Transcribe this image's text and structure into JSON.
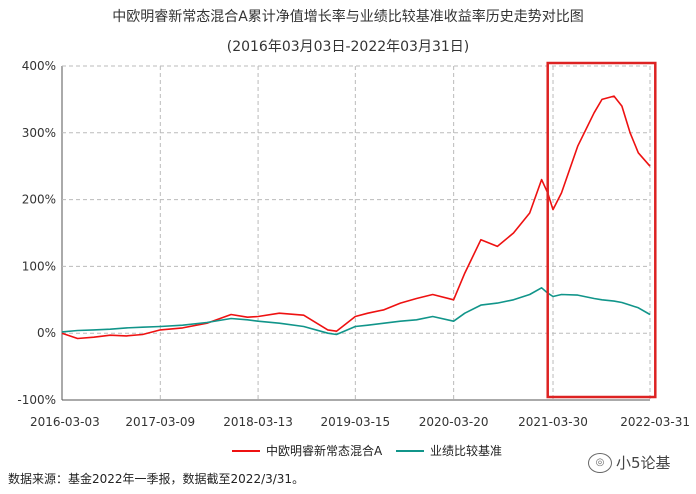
{
  "chart_data": {
    "type": "line",
    "title": "中欧明睿新常态混合A累计净值增长率与业绩比较基准收益率历史走势对比图",
    "subtitle": "(2016年03月03日-2022年03月31日)",
    "xlabel": "",
    "ylabel": "",
    "x_ticks": [
      "2016-03-03",
      "2017-03-09",
      "2018-03-13",
      "2019-03-15",
      "2020-03-20",
      "2021-03-30",
      "2022-03-31"
    ],
    "y_ticks": [
      "400%",
      "300%",
      "200%",
      "100%",
      "0%",
      "-100%"
    ],
    "y_tick_values": [
      400,
      300,
      200,
      100,
      0,
      -100
    ],
    "ylim": [
      -100,
      400
    ],
    "grid": true,
    "legend_position": "bottom",
    "series": [
      {
        "name": "中欧明睿新常态混合A",
        "color": "#ee1111",
        "x": [
          "2016-03-03",
          "2016-05-01",
          "2016-07-01",
          "2016-09-01",
          "2016-11-01",
          "2017-01-01",
          "2017-03-09",
          "2017-06-01",
          "2017-09-01",
          "2017-12-01",
          "2018-02-01",
          "2018-03-13",
          "2018-06-01",
          "2018-09-01",
          "2018-12-01",
          "2019-01-03",
          "2019-03-15",
          "2019-05-01",
          "2019-07-01",
          "2019-09-01",
          "2019-11-01",
          "2020-01-01",
          "2020-03-20",
          "2020-05-01",
          "2020-07-01",
          "2020-09-01",
          "2020-11-01",
          "2021-01-01",
          "2021-02-15",
          "2021-03-10",
          "2021-03-30",
          "2021-05-01",
          "2021-07-01",
          "2021-09-01",
          "2021-10-01",
          "2021-11-15",
          "2021-12-15",
          "2022-01-15",
          "2022-02-15",
          "2022-03-31"
        ],
        "values": [
          0,
          -8,
          -6,
          -3,
          -4,
          -2,
          5,
          8,
          15,
          28,
          24,
          25,
          30,
          27,
          5,
          3,
          25,
          30,
          35,
          45,
          52,
          58,
          50,
          90,
          140,
          130,
          150,
          180,
          230,
          210,
          185,
          210,
          280,
          330,
          350,
          355,
          340,
          300,
          270,
          250
        ]
      },
      {
        "name": "业绩比较基准",
        "color": "#11958a",
        "x": [
          "2016-03-03",
          "2016-05-01",
          "2016-07-01",
          "2016-09-01",
          "2016-11-01",
          "2017-01-01",
          "2017-03-09",
          "2017-06-01",
          "2017-09-01",
          "2017-12-01",
          "2018-02-01",
          "2018-03-13",
          "2018-06-01",
          "2018-09-01",
          "2018-12-01",
          "2019-01-03",
          "2019-03-15",
          "2019-05-01",
          "2019-07-01",
          "2019-09-01",
          "2019-11-01",
          "2020-01-01",
          "2020-03-20",
          "2020-05-01",
          "2020-07-01",
          "2020-09-01",
          "2020-11-01",
          "2021-01-01",
          "2021-02-15",
          "2021-03-10",
          "2021-03-30",
          "2021-05-01",
          "2021-07-01",
          "2021-09-01",
          "2021-10-01",
          "2021-11-15",
          "2021-12-15",
          "2022-01-15",
          "2022-02-15",
          "2022-03-31"
        ],
        "values": [
          2,
          4,
          5,
          6,
          8,
          9,
          10,
          12,
          16,
          22,
          20,
          18,
          15,
          10,
          0,
          -2,
          10,
          12,
          15,
          18,
          20,
          25,
          18,
          30,
          42,
          45,
          50,
          58,
          68,
          60,
          55,
          58,
          57,
          52,
          50,
          48,
          46,
          42,
          38,
          28
        ]
      }
    ],
    "annotation": {
      "type": "highlight-rect",
      "color": "#dd2222",
      "x_start": "2021-03-10",
      "x_end": "2022-04-20"
    }
  },
  "source_note": "数据来源：基金2022年一季报，数据截至2022/3/31。",
  "watermark": {
    "text": "小5论基",
    "icon": "wechat-icon"
  }
}
